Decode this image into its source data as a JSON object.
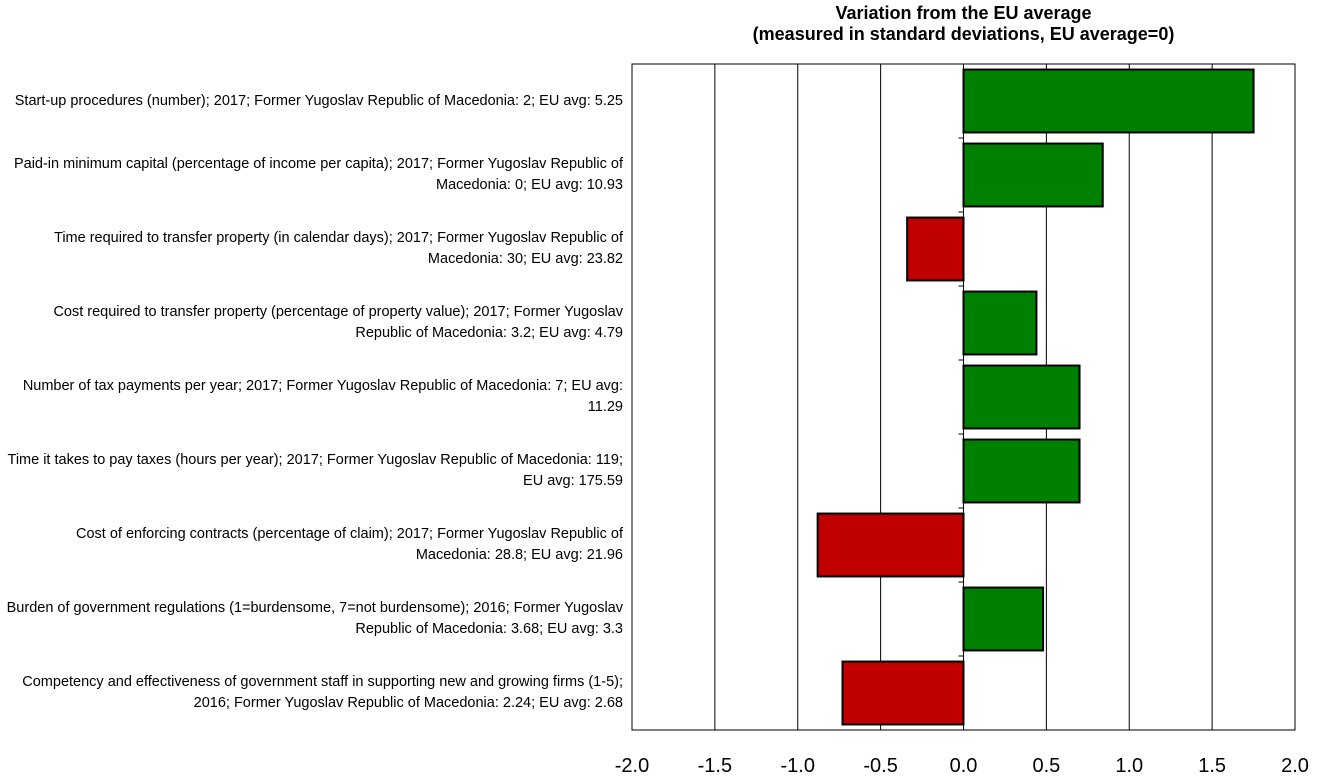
{
  "chart_data": {
    "type": "hbar",
    "title": [
      "Variation from the EU average",
      "(measured in standard deviations, EU average=0)"
    ],
    "categories": [
      "Start-up procedures (number); 2017; Former Yugoslav Republic of Macedonia: 2; EU avg: 5.25",
      "Paid-in minimum capital (percentage of income per capita); 2017; Former Yugoslav Republic of Macedonia: 0; EU avg: 10.93",
      "Time required to transfer property (in calendar days); 2017; Former Yugoslav Republic of Macedonia: 30; EU avg: 23.82",
      "Cost required to transfer property (percentage of property value); 2017; Former Yugoslav Republic of Macedonia: 3.2; EU avg: 4.79",
      "Number of tax payments per year; 2017; Former Yugoslav Republic of Macedonia: 7; EU avg: 11.29",
      "Time it takes to pay taxes (hours per year); 2017; Former Yugoslav Republic of Macedonia: 119; EU avg: 175.59",
      "Cost of enforcing contracts (percentage of claim); 2017; Former Yugoslav Republic of Macedonia: 28.8; EU avg: 21.96",
      "Burden of government regulations (1=burdensome, 7=not burdensome); 2016; Former Yugoslav Republic of Macedonia: 3.68; EU avg: 3.3",
      "Competency and effectiveness of government staff in supporting new and growing firms (1-5); 2016; Former Yugoslav Republic of Macedonia: 2.24; EU avg: 2.68"
    ],
    "values": [
      1.75,
      0.84,
      -0.34,
      0.44,
      0.7,
      0.7,
      -0.88,
      0.48,
      -0.73
    ],
    "colors": [
      "#008000",
      "#008000",
      "#c00000",
      "#008000",
      "#008000",
      "#008000",
      "#c00000",
      "#008000",
      "#c00000"
    ],
    "xlim": [
      -2,
      2
    ],
    "xticks": [
      {
        "value": -2,
        "label": "-2.0"
      },
      -1.5,
      {
        "value": -1,
        "label": "-1.0"
      },
      -0.5,
      {
        "value": 0,
        "label": "0.0"
      },
      0.5,
      {
        "value": 1,
        "label": "1.0"
      },
      1.5,
      {
        "value": 2,
        "label": "2.0"
      }
    ],
    "grid": true
  }
}
